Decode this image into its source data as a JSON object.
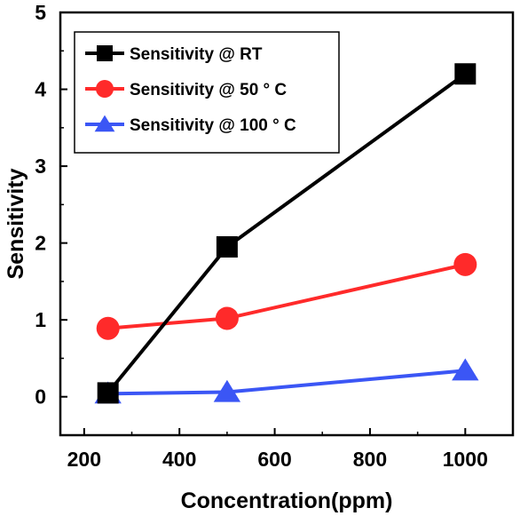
{
  "chart_data": {
    "type": "line",
    "title": "",
    "xlabel": "Concentration(ppm)",
    "ylabel": "Sensitivity",
    "x": [
      250,
      500,
      1000
    ],
    "xlim": [
      150,
      1100
    ],
    "ylim": [
      -0.5,
      5
    ],
    "xticks": [
      200,
      400,
      600,
      800,
      1000
    ],
    "yticks": [
      0,
      1,
      2,
      3,
      4,
      5
    ],
    "grid": false,
    "legend_position": "top-left",
    "series": [
      {
        "name": "Sensitivity @ RT",
        "values": [
          0.05,
          1.95,
          4.2
        ],
        "color": "#000000",
        "marker": "square"
      },
      {
        "name": "Sensitivity @ 50 ° C",
        "values": [
          0.89,
          1.02,
          1.72
        ],
        "color": "#ff2a2a",
        "marker": "circle"
      },
      {
        "name": "Sensitivity @ 100 ° C",
        "values": [
          0.04,
          0.06,
          0.34
        ],
        "color": "#3b56f5",
        "marker": "triangle"
      }
    ]
  }
}
